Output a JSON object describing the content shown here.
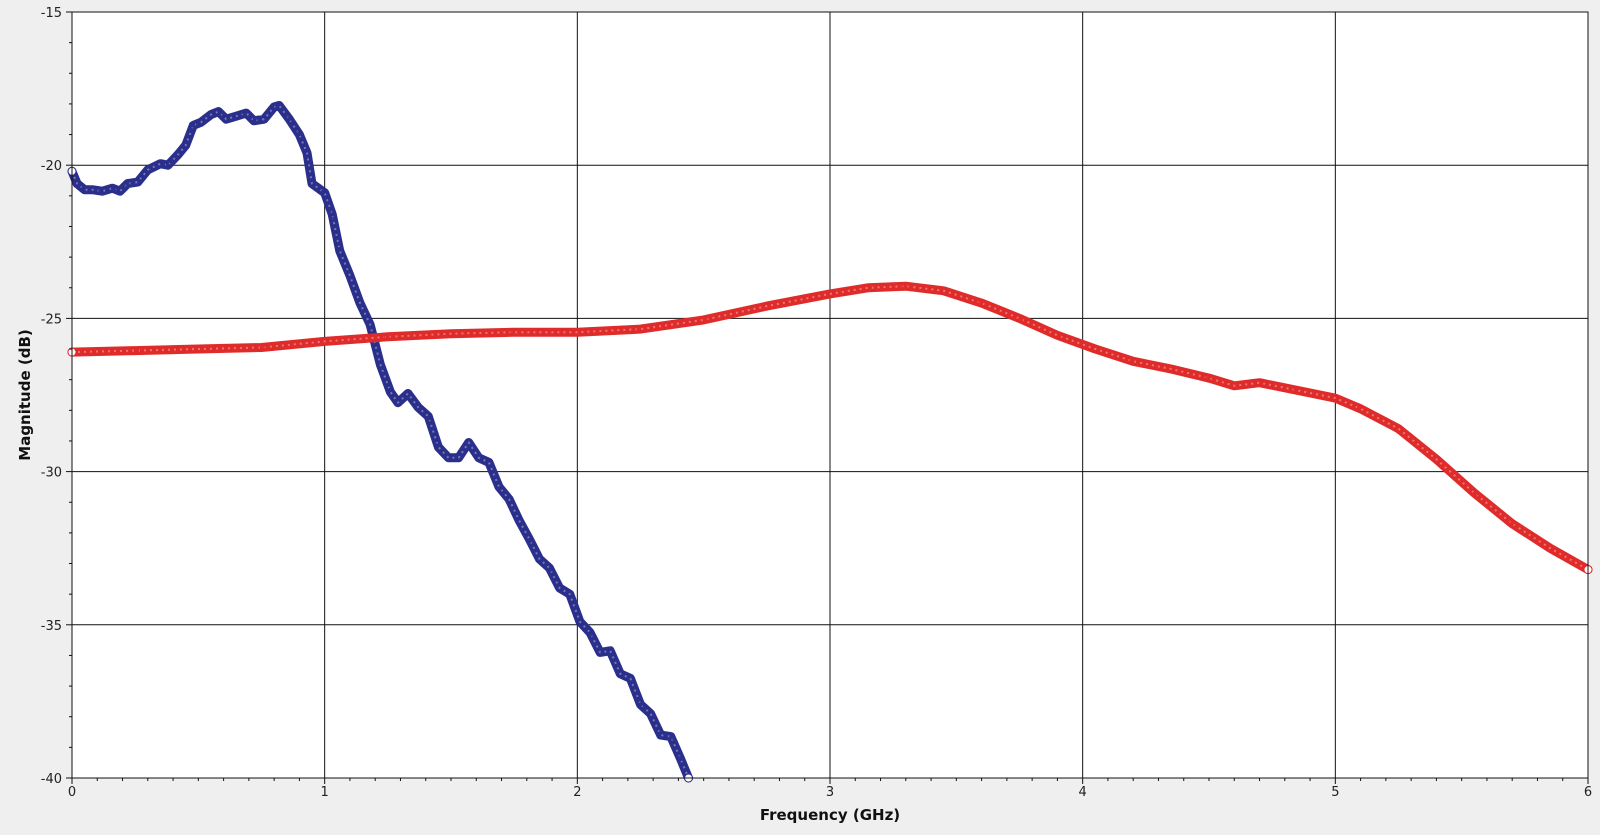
{
  "chart_data": {
    "type": "line",
    "title": "",
    "xlabel": "Frequency (GHz)",
    "ylabel": "Magnitude (dB)",
    "xlim": [
      0,
      6
    ],
    "ylim": [
      -40,
      -15
    ],
    "x_ticks": [
      "0",
      "1",
      "2",
      "3",
      "4",
      "5",
      "6"
    ],
    "y_ticks": [
      "-15",
      "-20",
      "-25",
      "-30",
      "-35",
      "-40"
    ],
    "grid": true,
    "legend": "none",
    "series": [
      {
        "color": "#2b2f8c",
        "marker": "open-circle",
        "points": [
          [
            0.0,
            -20.2
          ],
          [
            0.02,
            -20.6
          ],
          [
            0.05,
            -20.8
          ],
          [
            0.08,
            -20.8
          ],
          [
            0.12,
            -20.85
          ],
          [
            0.16,
            -20.75
          ],
          [
            0.19,
            -20.85
          ],
          [
            0.22,
            -20.6
          ],
          [
            0.26,
            -20.55
          ],
          [
            0.3,
            -20.15
          ],
          [
            0.35,
            -19.95
          ],
          [
            0.38,
            -20.0
          ],
          [
            0.42,
            -19.65
          ],
          [
            0.45,
            -19.35
          ],
          [
            0.48,
            -18.7
          ],
          [
            0.51,
            -18.6
          ],
          [
            0.55,
            -18.35
          ],
          [
            0.58,
            -18.25
          ],
          [
            0.61,
            -18.5
          ],
          [
            0.65,
            -18.4
          ],
          [
            0.69,
            -18.3
          ],
          [
            0.72,
            -18.55
          ],
          [
            0.76,
            -18.5
          ],
          [
            0.8,
            -18.1
          ],
          [
            0.82,
            -18.05
          ],
          [
            0.86,
            -18.5
          ],
          [
            0.9,
            -19.0
          ],
          [
            0.93,
            -19.6
          ],
          [
            0.95,
            -20.6
          ],
          [
            1.0,
            -20.9
          ],
          [
            1.03,
            -21.6
          ],
          [
            1.06,
            -22.8
          ],
          [
            1.1,
            -23.6
          ],
          [
            1.14,
            -24.5
          ],
          [
            1.18,
            -25.2
          ],
          [
            1.22,
            -26.5
          ],
          [
            1.26,
            -27.4
          ],
          [
            1.29,
            -27.75
          ],
          [
            1.33,
            -27.45
          ],
          [
            1.37,
            -27.9
          ],
          [
            1.41,
            -28.2
          ],
          [
            1.45,
            -29.2
          ],
          [
            1.49,
            -29.55
          ],
          [
            1.53,
            -29.55
          ],
          [
            1.57,
            -29.05
          ],
          [
            1.61,
            -29.55
          ],
          [
            1.65,
            -29.7
          ],
          [
            1.69,
            -30.5
          ],
          [
            1.73,
            -30.9
          ],
          [
            1.77,
            -31.6
          ],
          [
            1.81,
            -32.2
          ],
          [
            1.85,
            -32.85
          ],
          [
            1.89,
            -33.15
          ],
          [
            1.93,
            -33.8
          ],
          [
            1.97,
            -34.0
          ],
          [
            2.01,
            -34.9
          ],
          [
            2.05,
            -35.25
          ],
          [
            2.09,
            -35.9
          ],
          [
            2.13,
            -35.85
          ],
          [
            2.17,
            -36.6
          ],
          [
            2.21,
            -36.75
          ],
          [
            2.25,
            -37.6
          ],
          [
            2.29,
            -37.9
          ],
          [
            2.33,
            -38.6
          ],
          [
            2.37,
            -38.65
          ],
          [
            2.41,
            -39.4
          ],
          [
            2.44,
            -40.0
          ]
        ]
      },
      {
        "color": "#e02b2b",
        "marker": "open-circle",
        "points": [
          [
            0.0,
            -26.1
          ],
          [
            0.25,
            -26.05
          ],
          [
            0.5,
            -26.0
          ],
          [
            0.75,
            -25.95
          ],
          [
            1.0,
            -25.75
          ],
          [
            1.25,
            -25.6
          ],
          [
            1.5,
            -25.5
          ],
          [
            1.75,
            -25.45
          ],
          [
            2.0,
            -25.45
          ],
          [
            2.25,
            -25.35
          ],
          [
            2.5,
            -25.05
          ],
          [
            2.75,
            -24.6
          ],
          [
            3.0,
            -24.2
          ],
          [
            3.15,
            -24.0
          ],
          [
            3.3,
            -23.95
          ],
          [
            3.45,
            -24.1
          ],
          [
            3.6,
            -24.5
          ],
          [
            3.75,
            -25.0
          ],
          [
            3.9,
            -25.55
          ],
          [
            4.05,
            -26.0
          ],
          [
            4.2,
            -26.4
          ],
          [
            4.35,
            -26.65
          ],
          [
            4.5,
            -26.95
          ],
          [
            4.6,
            -27.2
          ],
          [
            4.7,
            -27.1
          ],
          [
            4.85,
            -27.35
          ],
          [
            5.0,
            -27.6
          ],
          [
            5.1,
            -27.95
          ],
          [
            5.25,
            -28.6
          ],
          [
            5.4,
            -29.6
          ],
          [
            5.55,
            -30.7
          ],
          [
            5.7,
            -31.7
          ],
          [
            5.85,
            -32.5
          ],
          [
            6.0,
            -33.2
          ]
        ]
      }
    ]
  }
}
